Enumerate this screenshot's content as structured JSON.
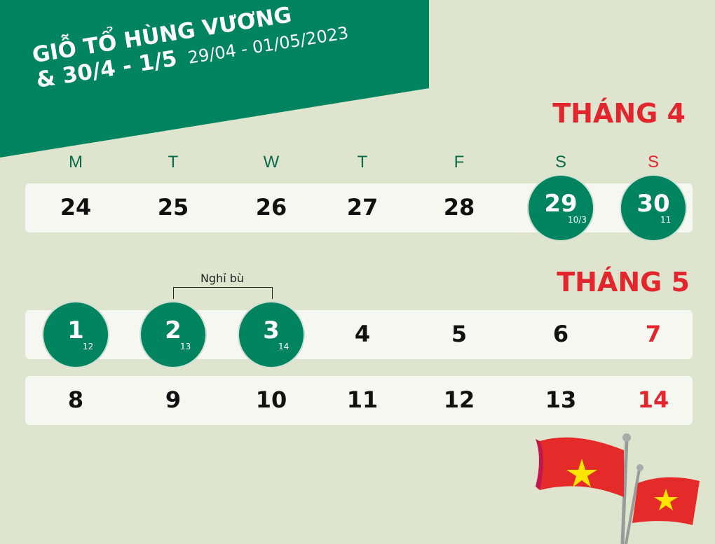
{
  "header": {
    "line1": "GIỖ TỔ HÙNG VƯƠNG",
    "line2": "& 30/4 - 1/5",
    "dates": "29/04 - 01/05/2023"
  },
  "weekdays": [
    "M",
    "T",
    "W",
    "T",
    "F",
    "S",
    "S"
  ],
  "april": {
    "title": "THÁNG 4",
    "days": [
      {
        "d": "24"
      },
      {
        "d": "25"
      },
      {
        "d": "26"
      },
      {
        "d": "27"
      },
      {
        "d": "28"
      },
      {
        "d": "29",
        "lunar": "10/3",
        "holiday": true
      },
      {
        "d": "30",
        "lunar": "11",
        "holiday": true
      }
    ]
  },
  "may": {
    "title": "THÁNG 5",
    "note": "Nghỉ bù",
    "week1": [
      {
        "d": "1",
        "lunar": "12",
        "holiday": true
      },
      {
        "d": "2",
        "lunar": "13",
        "holiday": true
      },
      {
        "d": "3",
        "lunar": "14",
        "holiday": true
      },
      {
        "d": "4"
      },
      {
        "d": "5"
      },
      {
        "d": "6"
      },
      {
        "d": "7",
        "sunday": true
      }
    ],
    "week2": [
      {
        "d": "8"
      },
      {
        "d": "9"
      },
      {
        "d": "10"
      },
      {
        "d": "11"
      },
      {
        "d": "12"
      },
      {
        "d": "13"
      },
      {
        "d": "14",
        "sunday": true
      }
    ]
  },
  "colors": {
    "green": "#00845f",
    "red": "#e3262d",
    "background": "#dee4cd"
  },
  "decor": {
    "icon": "vietnam-flags-icon"
  }
}
